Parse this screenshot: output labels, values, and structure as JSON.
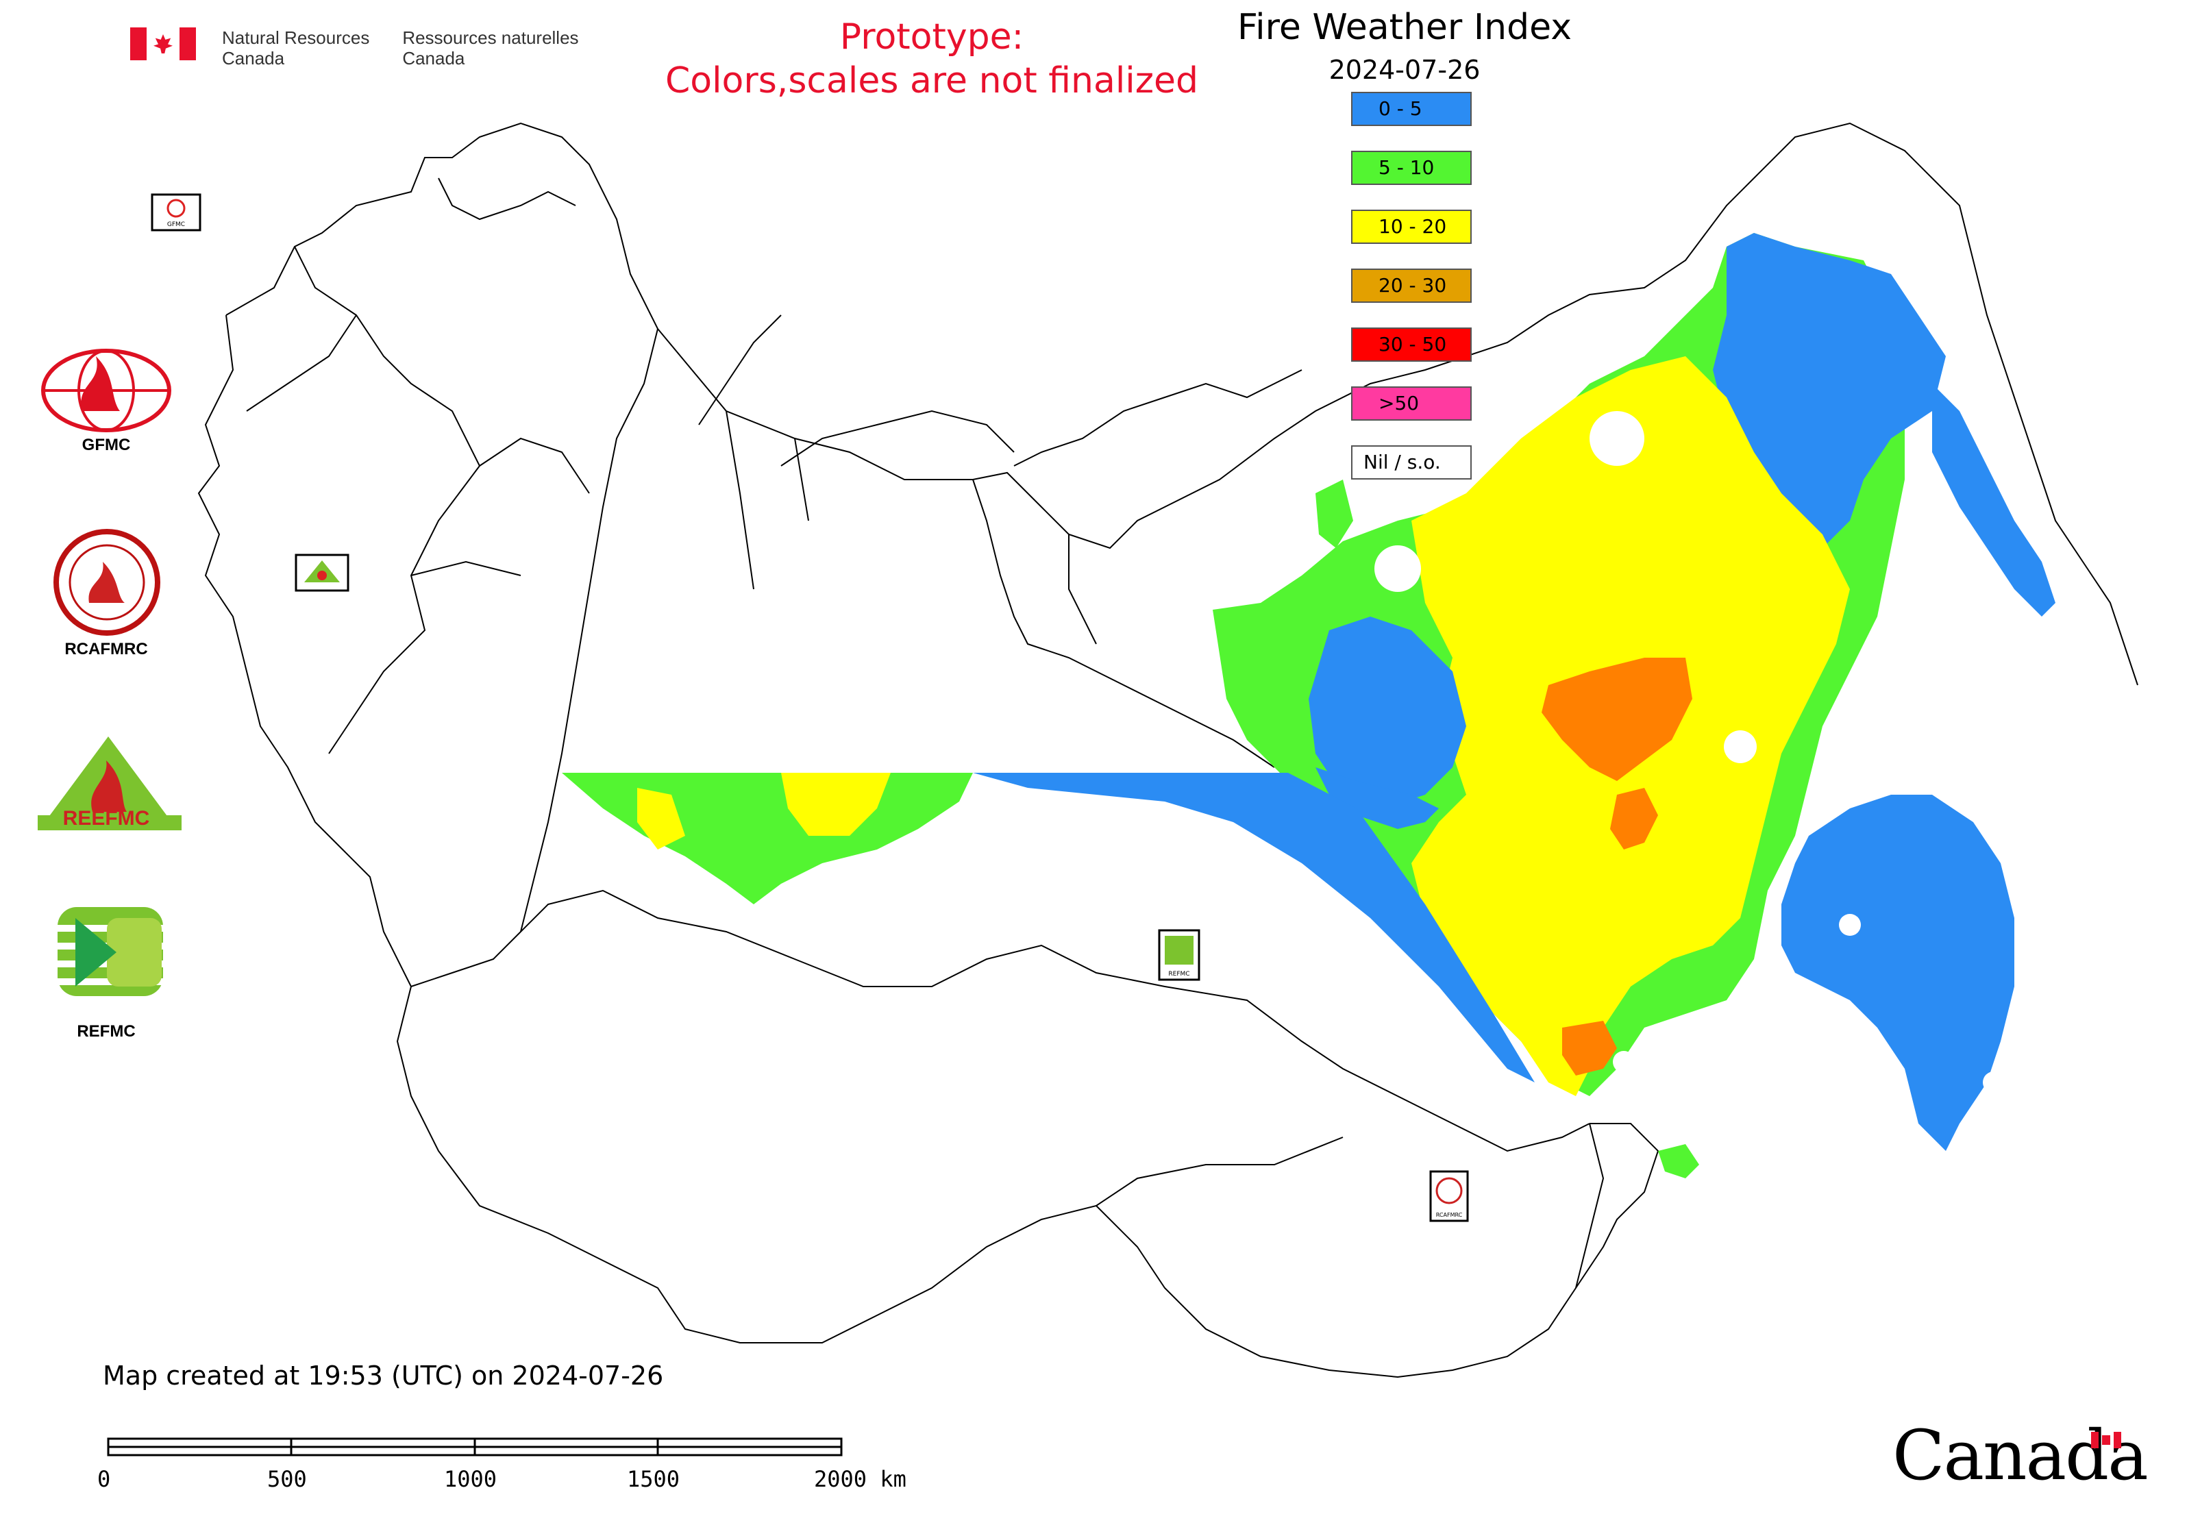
{
  "header": {
    "agency_en": [
      "Natural Resources",
      "Canada"
    ],
    "agency_fr": [
      "Ressources naturelles",
      "Canada"
    ],
    "prototype_line1": "Prototype:",
    "prototype_line2": "Colors,scales are not finalized",
    "title": "Fire Weather Index",
    "date": "2024-07-26"
  },
  "legend": [
    {
      "label": "0 - 5",
      "color": "#2b8cf3"
    },
    {
      "label": "5 - 10",
      "color": "#53f531"
    },
    {
      "label": "10 - 20",
      "color": "#ffff00"
    },
    {
      "label": "20 - 30",
      "color": "#e3a000"
    },
    {
      "label": "30 - 50",
      "color": "#ff0000"
    },
    {
      "label": ">50",
      "color": "#ff3aa0"
    },
    {
      "label": "Nil / s.o.",
      "color": "#ffffff"
    }
  ],
  "logos": [
    {
      "label": "GFMC",
      "icon": "gfmc-logo"
    },
    {
      "label": "RCAFMRC",
      "icon": "rcafmrc-logo"
    },
    {
      "label": "REEFMC",
      "icon": "reefmc-logo"
    },
    {
      "label": "REFMC",
      "icon": "refmc-logo"
    }
  ],
  "map_markers": [
    {
      "label": "GFMC"
    },
    {
      "label": "REEFMC"
    },
    {
      "label": "REFMC"
    },
    {
      "label": "RCAFMRC"
    }
  ],
  "footer": {
    "created": "Map created at 19:53 (UTC) on 2024-07-26",
    "scalebar_labels": [
      "0",
      "500",
      "1000",
      "1500",
      "2000 km"
    ],
    "wordmark": "Canada"
  },
  "colors": {
    "fwi_blue": "#2b8cf3",
    "fwi_green": "#53f531",
    "fwi_yellow": "#ffff00",
    "fwi_orange": "#ff8000",
    "prototype_red": "#e8112d"
  }
}
